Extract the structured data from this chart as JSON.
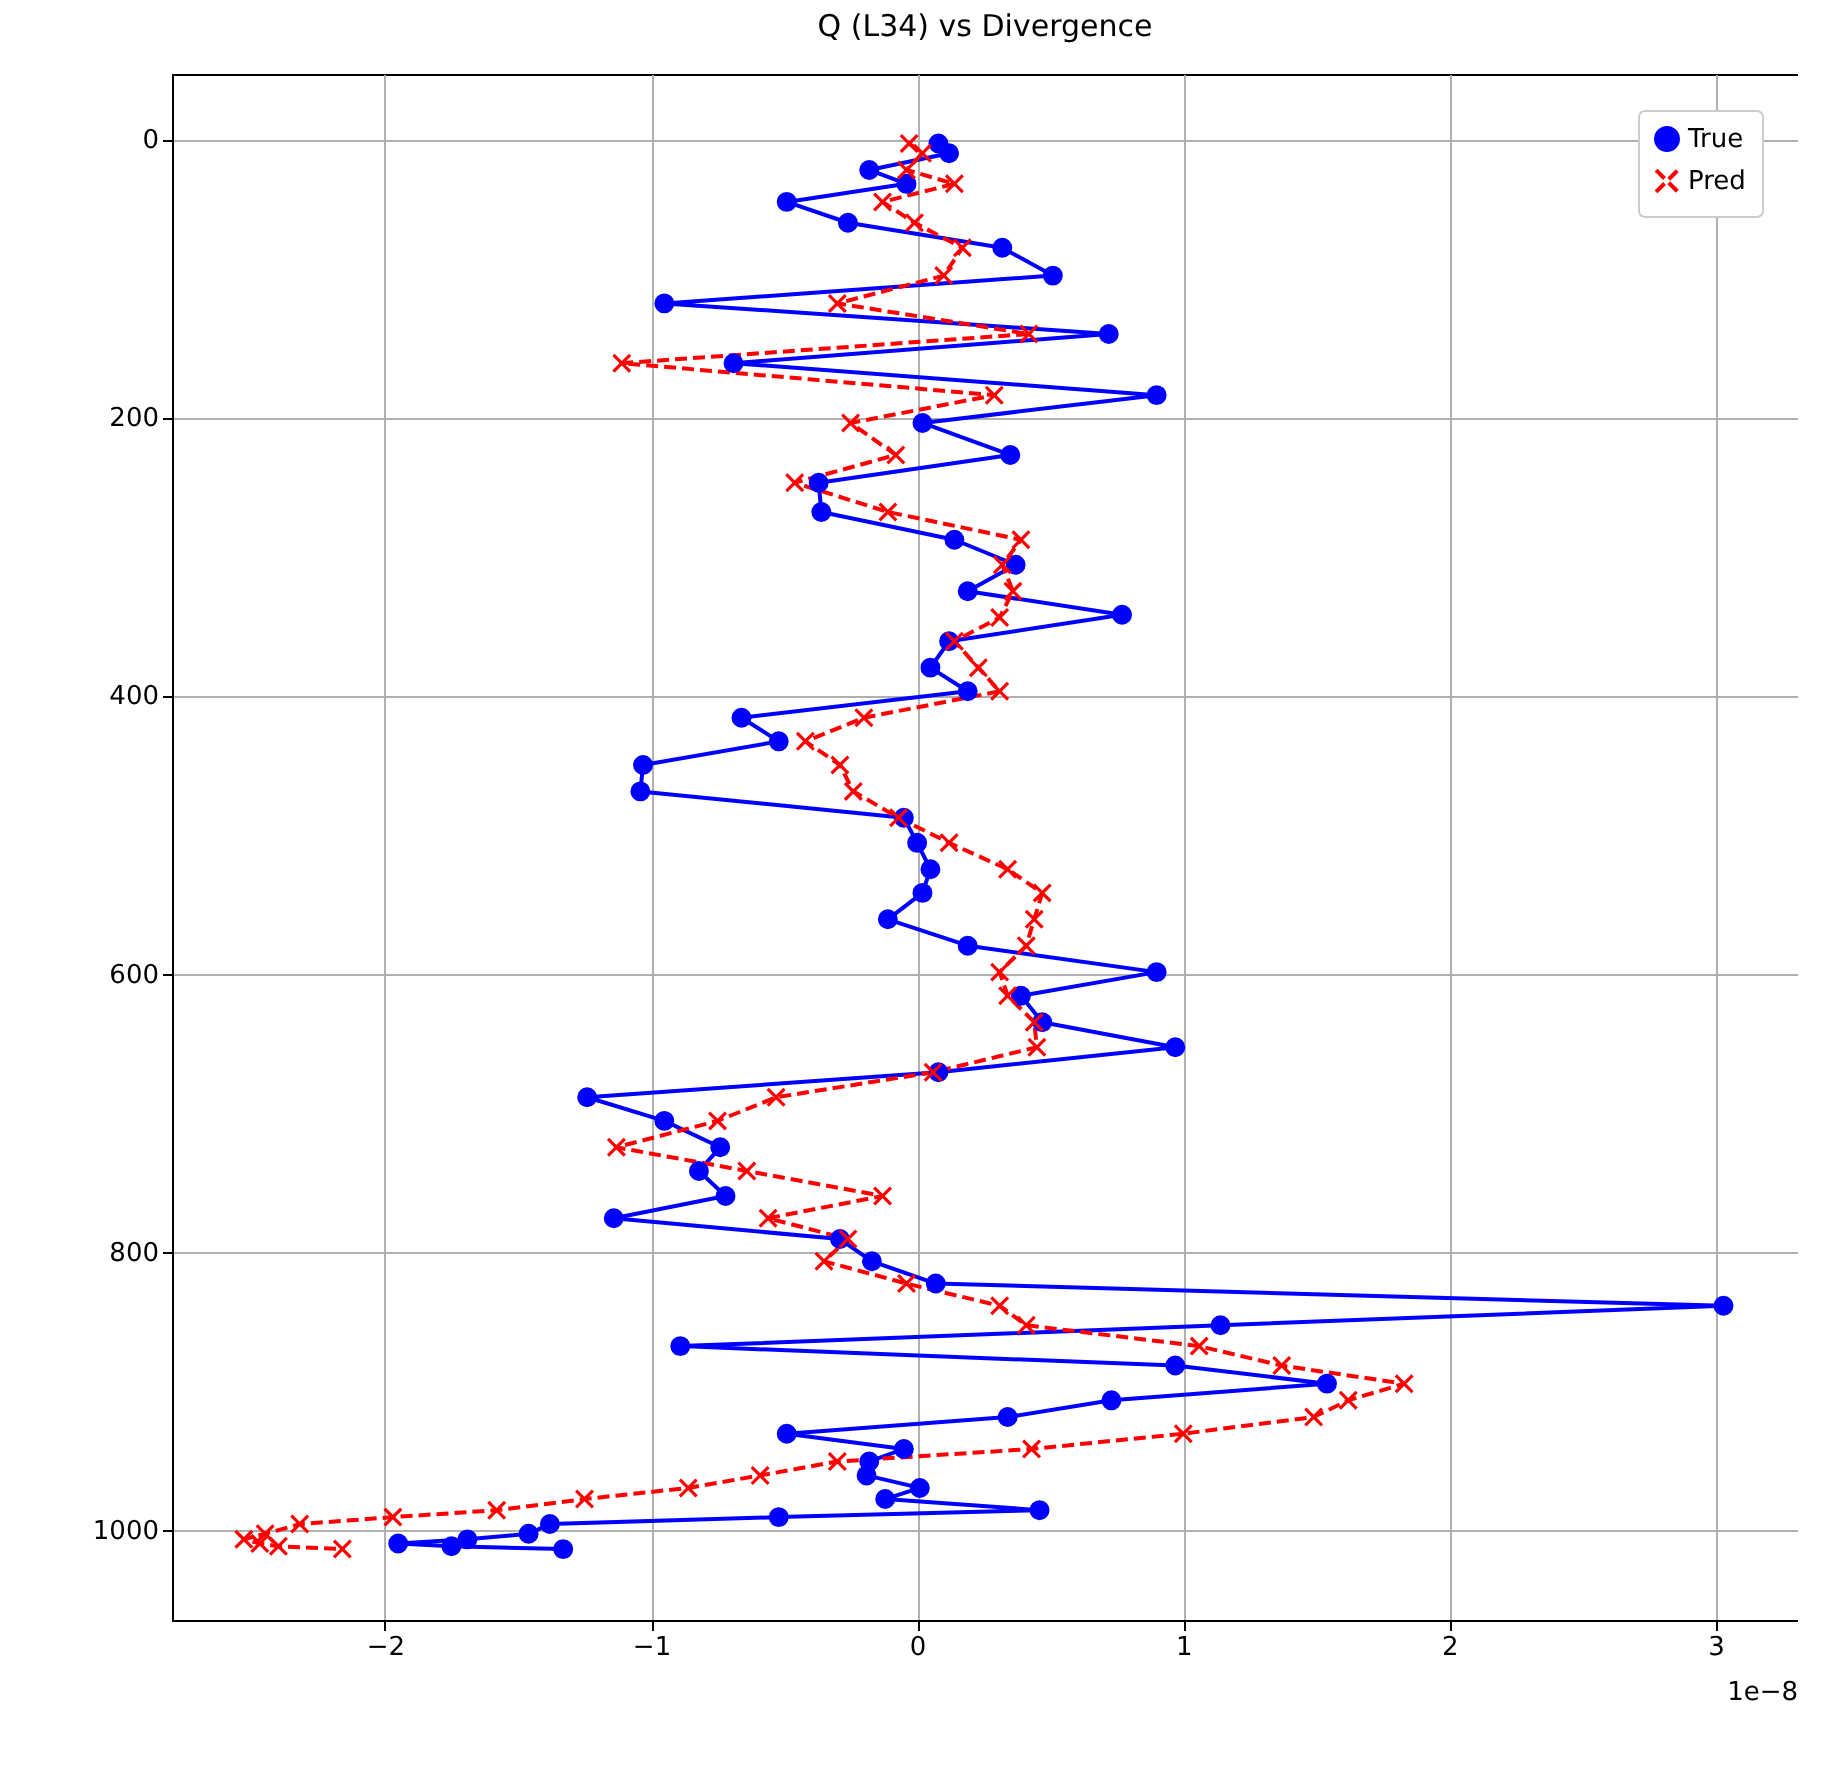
{
  "chart_data": {
    "type": "line",
    "title": "Q (L34) vs Divergence",
    "annotations": [
      "1e−8"
    ],
    "xlim": [
      -2.8,
      3.31
    ],
    "xticks": [
      -2,
      -1,
      0,
      1,
      2,
      3
    ],
    "ylim": [
      1065,
      -47
    ],
    "yticks": [
      0,
      200,
      400,
      600,
      800,
      1000
    ],
    "grid": true,
    "legend": "top right",
    "series": [
      {
        "name": "True",
        "color": "#0000ff",
        "marker": "circle",
        "line_style": "solid",
        "x": [
          0.08,
          0.12,
          -0.18,
          -0.04,
          -0.49,
          -0.26,
          0.32,
          0.51,
          -0.95,
          0.72,
          -0.69,
          0.9,
          0.02,
          0.35,
          -0.37,
          -0.36,
          0.14,
          0.37,
          0.19,
          0.77,
          0.12,
          0.05,
          0.19,
          -0.66,
          -0.52,
          -1.03,
          -1.04,
          -0.05,
          0,
          0.05,
          0.02,
          -0.11,
          0.19,
          0.9,
          0.39,
          0.47,
          0.97,
          0.08,
          -1.24,
          -0.95,
          -0.74,
          -0.82,
          -0.72,
          -1.14,
          -0.29,
          -0.17,
          0.07,
          3.03,
          1.14,
          -0.89,
          0.97,
          1.54,
          0.73,
          0.34,
          -0.49,
          -0.05,
          -0.18,
          -0.19,
          0.01,
          -0.12,
          0.46,
          -0.52,
          -1.38,
          -1.46,
          -1.69,
          -1.95,
          -1.75,
          -1.33
        ],
        "values": [
          3,
          10,
          22,
          32,
          45,
          60,
          78,
          98,
          118,
          140,
          161,
          184,
          204,
          227,
          247,
          268,
          288,
          306,
          325,
          342,
          361,
          380,
          397,
          416,
          433,
          450,
          469,
          488,
          506,
          525,
          542,
          561,
          580,
          599,
          616,
          635,
          653,
          671,
          689,
          706,
          725,
          742,
          760,
          776,
          791,
          807,
          823,
          839,
          853,
          868,
          882,
          895,
          907,
          919,
          931,
          942,
          951,
          961,
          970,
          978,
          986,
          991,
          996,
          1003,
          1007,
          1010,
          1012,
          1014
        ]
      },
      {
        "name": "Pred",
        "color": "#ff0000",
        "marker": "cross",
        "line_style": "dashed",
        "x": [
          -0.03,
          0.02,
          -0.04,
          0.14,
          -0.13,
          -0.01,
          0.17,
          0.1,
          -0.3,
          0.42,
          -1.11,
          0.29,
          -0.25,
          -0.08,
          -0.46,
          -0.11,
          0.39,
          0.32,
          0.36,
          0.31,
          0.14,
          0.23,
          0.31,
          -0.2,
          -0.42,
          -0.29,
          -0.24,
          -0.07,
          0.12,
          0.34,
          0.47,
          0.44,
          0.41,
          0.31,
          0.34,
          0.44,
          0.45,
          0.06,
          -0.53,
          -0.75,
          -1.13,
          -0.64,
          -0.13,
          -0.56,
          -0.26,
          -0.35,
          -0.04,
          0.31,
          0.41,
          1.06,
          1.37,
          1.83,
          1.62,
          1.49,
          1.0,
          0.43,
          -0.3,
          -0.59,
          -0.86,
          -1.25,
          -1.58,
          -1.97,
          -2.32,
          -2.45,
          -2.53,
          -2.47,
          -2.4,
          -2.16
        ],
        "values": [
          3,
          10,
          22,
          32,
          45,
          60,
          78,
          98,
          118,
          140,
          161,
          184,
          204,
          227,
          247,
          268,
          288,
          306,
          325,
          344,
          361,
          380,
          397,
          416,
          433,
          450,
          469,
          488,
          506,
          525,
          542,
          561,
          580,
          599,
          616,
          635,
          653,
          671,
          689,
          706,
          725,
          742,
          760,
          776,
          791,
          807,
          823,
          839,
          853,
          868,
          882,
          895,
          907,
          919,
          931,
          942,
          951,
          961,
          970,
          978,
          986,
          991,
          996,
          1003,
          1007,
          1010,
          1012,
          1014
        ]
      }
    ]
  }
}
